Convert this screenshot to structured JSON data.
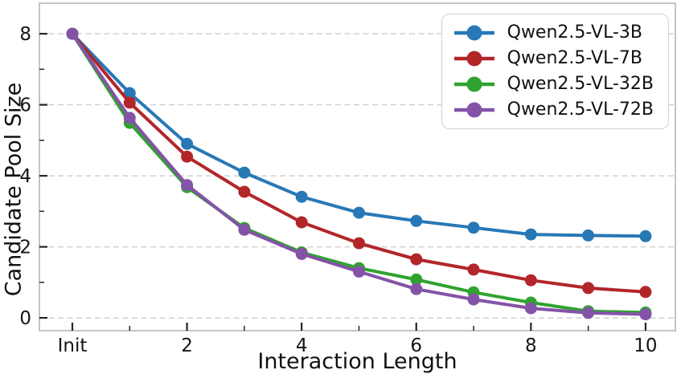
{
  "chart_data": {
    "type": "line",
    "title": "",
    "xlabel": "Interaction Length",
    "ylabel": "Candidate Pool Size",
    "x_categories": [
      "Init",
      "1",
      "2",
      "3",
      "4",
      "5",
      "6",
      "7",
      "8",
      "9",
      "10"
    ],
    "x_major_tick_indices": [
      0,
      2,
      4,
      6,
      8,
      10
    ],
    "x_major_tick_labels": [
      "Init",
      "2",
      "4",
      "6",
      "8",
      "10"
    ],
    "x_minor_tick_indices": [
      1,
      3,
      5,
      7,
      9
    ],
    "y_major_ticks": [
      0,
      2,
      4,
      6,
      8
    ],
    "y_minor_ticks": [
      1,
      3,
      5,
      7
    ],
    "ylim": [
      -0.36,
      8.86
    ],
    "xlim_index": [
      -0.575,
      10.52
    ],
    "grid": {
      "axis": "y",
      "style": "dashed",
      "color": "#d0d0d0"
    },
    "legend_position": "upper-right",
    "series": [
      {
        "name": "Qwen2.5-VL-3B",
        "color": "#2878b5",
        "marker": "circle",
        "values": [
          8.0,
          6.33,
          4.9,
          4.09,
          3.41,
          2.96,
          2.73,
          2.54,
          2.35,
          2.32,
          2.3
        ]
      },
      {
        "name": "Qwen2.5-VL-7B",
        "color": "#b2262a",
        "marker": "circle",
        "values": [
          8.0,
          6.06,
          4.54,
          3.55,
          2.69,
          2.1,
          1.65,
          1.36,
          1.06,
          0.84,
          0.73
        ]
      },
      {
        "name": "Qwen2.5-VL-32B",
        "color": "#2fa32f",
        "marker": "circle",
        "values": [
          8.0,
          5.49,
          3.68,
          2.53,
          1.84,
          1.4,
          1.08,
          0.72,
          0.43,
          0.19,
          0.15
        ]
      },
      {
        "name": "Qwen2.5-VL-72B",
        "color": "#8453a7",
        "marker": "circle",
        "values": [
          8.0,
          5.63,
          3.74,
          2.48,
          1.8,
          1.3,
          0.81,
          0.52,
          0.27,
          0.14,
          0.1
        ]
      }
    ],
    "styles": {
      "spine_color": "#c4c4c4",
      "tick_color": "#262626",
      "text_color": "#151515",
      "background": "#ffffff",
      "line_width": 4,
      "marker_radius": 7.5
    }
  }
}
